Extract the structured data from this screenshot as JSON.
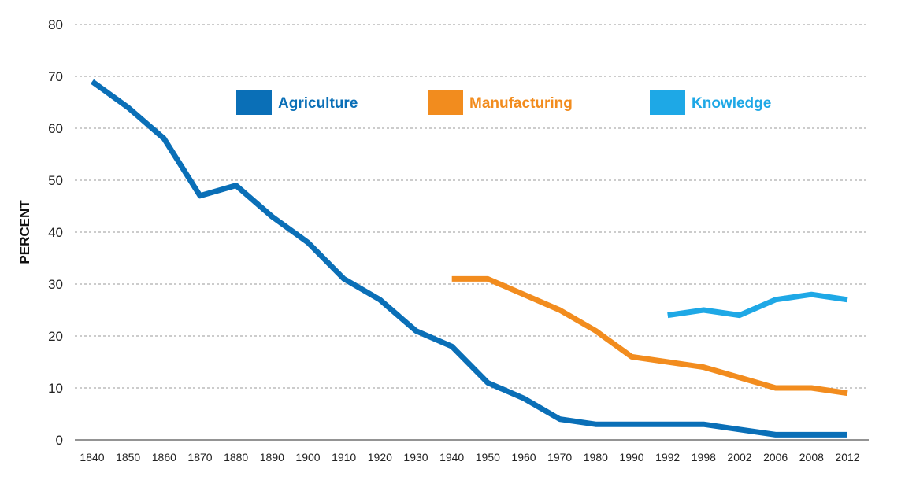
{
  "chart_data": {
    "type": "line",
    "title": "",
    "xlabel": "",
    "ylabel": "PERCENT",
    "ylim": [
      0,
      80
    ],
    "yticks": [
      0,
      10,
      20,
      30,
      40,
      50,
      60,
      70,
      80
    ],
    "grid": "horizontal dashed",
    "legend_position": "top-center",
    "categories": [
      "1840",
      "1850",
      "1860",
      "1870",
      "1880",
      "1890",
      "1900",
      "1910",
      "1920",
      "1930",
      "1940",
      "1950",
      "1960",
      "1970",
      "1980",
      "1990",
      "1992",
      "1998",
      "2002",
      "2006",
      "2008",
      "2012"
    ],
    "series": [
      {
        "name": "Agriculture",
        "color": "#0a6fb7",
        "values": [
          69,
          64,
          58,
          47,
          49,
          43,
          38,
          31,
          27,
          21,
          18,
          11,
          8,
          4,
          3,
          3,
          3,
          3,
          2,
          1,
          1,
          1
        ]
      },
      {
        "name": "Manufacturing",
        "color": "#f28c1e",
        "values": [
          null,
          null,
          null,
          null,
          null,
          null,
          null,
          null,
          null,
          null,
          31,
          31,
          28,
          25,
          21,
          16,
          15,
          14,
          12,
          10,
          10,
          9
        ]
      },
      {
        "name": "Knowledge",
        "color": "#1ea8e6",
        "values": [
          null,
          null,
          null,
          null,
          null,
          null,
          null,
          null,
          null,
          null,
          null,
          null,
          null,
          null,
          null,
          null,
          24,
          25,
          24,
          27,
          28,
          27
        ]
      }
    ]
  }
}
